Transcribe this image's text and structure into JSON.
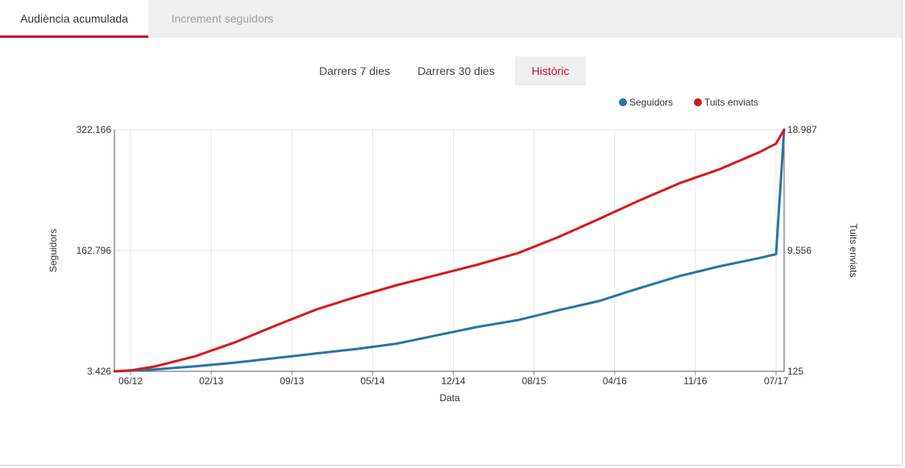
{
  "tabs": [
    {
      "label": "Audiència acumulada",
      "active": true
    },
    {
      "label": "Increment seguidors",
      "active": false
    }
  ],
  "range_tabs": [
    {
      "label": "Darrers 7 dies",
      "active": false
    },
    {
      "label": "Darrers 30 dies",
      "active": false
    },
    {
      "label": "Històric",
      "active": true
    }
  ],
  "colors": {
    "accent": "#c8102e",
    "seguidors": "#2874a6",
    "tuits": "#d7191c"
  },
  "chart_data": {
    "type": "line",
    "title": "",
    "xlabel": "Data",
    "ylabel": "Seguidors",
    "ylabel_right": "Tuits enviats",
    "x_ticks": [
      "06/12",
      "02/13",
      "09/13",
      "05/14",
      "12/14",
      "08/15",
      "04/16",
      "11/16",
      "07/17"
    ],
    "x_tick_positions": [
      0.2,
      1.2,
      2.2,
      3.2,
      4.2,
      5.2,
      6.2,
      7.2,
      8.2
    ],
    "xlim": [
      0,
      8.3
    ],
    "ylim": [
      3426,
      322166
    ],
    "yticks": [
      "3.426",
      "162.796",
      "322.166"
    ],
    "ylim_right": [
      125,
      18987
    ],
    "yticks_right": [
      "125",
      "9.556",
      "18.987"
    ],
    "legend_position": "top-right",
    "grid": true,
    "series": [
      {
        "name": "Seguidors",
        "axis": "left",
        "color": "#2874a6",
        "x": [
          0,
          0.5,
          1.0,
          1.5,
          2.0,
          2.5,
          3.0,
          3.5,
          4.0,
          4.5,
          5.0,
          5.5,
          6.0,
          6.5,
          7.0,
          7.5,
          8.0,
          8.2,
          8.3
        ],
        "y": [
          3426,
          6000,
          10000,
          15000,
          21000,
          27000,
          33000,
          40000,
          51000,
          62000,
          71000,
          84000,
          96000,
          113000,
          129000,
          142000,
          153000,
          158000,
          322166
        ]
      },
      {
        "name": "Tuits enviats",
        "axis": "right",
        "color": "#d7191c",
        "x": [
          0,
          0.2,
          0.5,
          1.0,
          1.5,
          2.0,
          2.5,
          3.0,
          3.5,
          4.0,
          4.5,
          5.0,
          5.5,
          6.0,
          6.5,
          7.0,
          7.5,
          8.0,
          8.2,
          8.3
        ],
        "y": [
          125,
          200,
          500,
          1300,
          2400,
          3700,
          4950,
          5950,
          6850,
          7650,
          8450,
          9350,
          10600,
          12000,
          13450,
          14800,
          15900,
          17250,
          17900,
          18987
        ]
      }
    ]
  }
}
